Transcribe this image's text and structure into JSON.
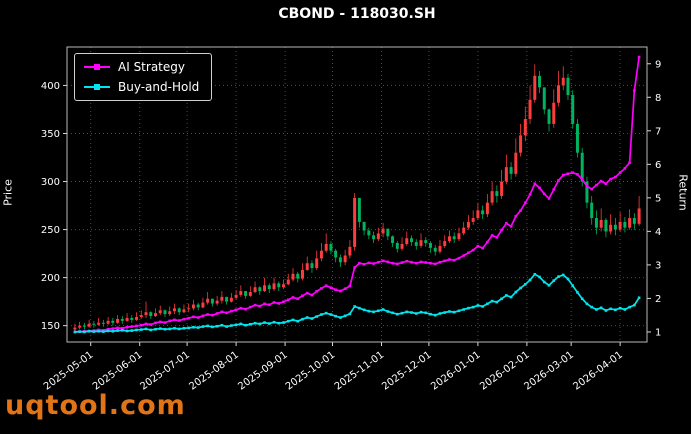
{
  "header": {
    "title": "CBOND - 118030.SH"
  },
  "watermark": {
    "text": "uqtool.com",
    "color": "#ee7b18"
  },
  "chart_data": {
    "type": "candlestick",
    "title": "CBOND - 118030.SH",
    "left_axis": {
      "label": "Price",
      "ticks": [
        150,
        200,
        250,
        300,
        350,
        400
      ],
      "range": [
        133,
        440
      ]
    },
    "right_axis": {
      "label": "Return",
      "ticks": [
        1,
        2,
        3,
        4,
        5,
        6,
        7,
        8,
        9
      ],
      "range": [
        0.7,
        9.5
      ]
    },
    "x_axis": {
      "start_date": "2025-04-21",
      "day_step": 3,
      "range": [
        -5,
        362
      ],
      "tick_days": [
        10,
        41,
        71,
        102,
        133,
        163,
        194,
        224,
        255,
        286,
        314,
        345
      ],
      "tick_labels": [
        "2025-05-01",
        "2025-06-01",
        "2025-07-01",
        "2025-08-01",
        "2025-09-01",
        "2025-10-01",
        "2025-11-01",
        "2025-12-01",
        "2026-01-01",
        "2026-02-01",
        "2026-03-01",
        "2026-04-01"
      ]
    },
    "colors": {
      "up_candle": "#fd3d3d",
      "down_candle": "#00b35f",
      "grid": "#4d4d4d",
      "background": "#000000"
    },
    "candles": {
      "high": [
        152,
        154,
        153,
        156,
        155,
        158,
        156,
        159,
        158,
        161,
        160,
        163,
        161,
        164,
        166,
        175,
        165,
        168,
        171,
        167,
        170,
        173,
        169,
        172,
        173,
        177,
        174,
        179,
        185,
        178,
        181,
        186,
        180,
        184,
        187,
        192,
        186,
        191,
        196,
        191,
        200,
        194,
        200,
        196,
        198,
        204,
        210,
        206,
        215,
        222,
        218,
        228,
        236,
        246,
        238,
        230,
        224,
        229,
        239,
        288,
        272,
        258,
        252,
        248,
        252,
        257,
        250,
        244,
        238,
        242,
        248,
        244,
        240,
        246,
        242,
        238,
        234,
        239,
        244,
        249,
        247,
        252,
        258,
        265,
        270,
        278,
        275,
        287,
        300,
        296,
        312,
        328,
        320,
        345,
        360,
        378,
        400,
        422,
        415,
        392,
        376,
        396,
        415,
        420,
        412,
        395,
        365,
        335,
        305,
        285,
        270,
        272,
        262,
        266,
        262,
        268,
        263,
        271,
        267,
        285
      ],
      "low": [
        144,
        146,
        146,
        148,
        148,
        150,
        149,
        151,
        150,
        152,
        152,
        154,
        153,
        155,
        157,
        158,
        157,
        159,
        161,
        159,
        160,
        162,
        161,
        163,
        164,
        166,
        166,
        168,
        172,
        170,
        171,
        173,
        172,
        174,
        177,
        180,
        178,
        180,
        184,
        182,
        185,
        184,
        186,
        186,
        188,
        192,
        196,
        195,
        197,
        207,
        205,
        208,
        217,
        226,
        224,
        216,
        211,
        213,
        220,
        228,
        252,
        244,
        240,
        236,
        238,
        242,
        239,
        232,
        226,
        228,
        233,
        233,
        229,
        231,
        232,
        226,
        223,
        225,
        231,
        236,
        236,
        238,
        244,
        250,
        255,
        260,
        261,
        263,
        275,
        278,
        282,
        297,
        302,
        305,
        326,
        342,
        360,
        382,
        392,
        370,
        352,
        356,
        378,
        395,
        385,
        355,
        325,
        295,
        272,
        255,
        245,
        248,
        242,
        245,
        244,
        248,
        247,
        250,
        250,
        254
      ],
      "close": [
        148,
        150,
        149,
        152,
        151,
        153,
        152,
        155,
        153,
        157,
        155,
        158,
        156,
        159,
        161,
        164,
        160,
        163,
        166,
        162,
        165,
        168,
        164,
        167,
        168,
        172,
        169,
        174,
        178,
        173,
        176,
        180,
        175,
        179,
        182,
        186,
        181,
        185,
        190,
        186,
        192,
        188,
        194,
        190,
        193,
        198,
        204,
        199,
        208,
        215,
        210,
        220,
        228,
        235,
        228,
        221,
        216,
        223,
        232,
        283,
        258,
        249,
        244,
        240,
        246,
        251,
        243,
        236,
        230,
        235,
        241,
        237,
        233,
        239,
        236,
        231,
        227,
        233,
        238,
        243,
        240,
        246,
        252,
        258,
        262,
        270,
        266,
        278,
        290,
        285,
        300,
        315,
        308,
        330,
        348,
        365,
        385,
        410,
        398,
        375,
        360,
        382,
        400,
        408,
        390,
        360,
        330,
        300,
        278,
        262,
        252,
        260,
        248,
        255,
        250,
        258,
        252,
        262,
        256,
        272
      ]
    },
    "series": [
      {
        "name": "AI Strategy",
        "color": "#ff00ff",
        "axis": "return",
        "values": [
          1.0,
          1.01,
          1.02,
          1.03,
          1.04,
          1.06,
          1.05,
          1.08,
          1.1,
          1.12,
          1.11,
          1.14,
          1.16,
          1.18,
          1.2,
          1.24,
          1.22,
          1.27,
          1.3,
          1.28,
          1.33,
          1.36,
          1.34,
          1.38,
          1.41,
          1.45,
          1.43,
          1.48,
          1.52,
          1.5,
          1.55,
          1.6,
          1.57,
          1.62,
          1.66,
          1.71,
          1.68,
          1.74,
          1.8,
          1.77,
          1.84,
          1.81,
          1.88,
          1.85,
          1.9,
          1.96,
          2.03,
          1.99,
          2.08,
          2.16,
          2.1,
          2.21,
          2.3,
          2.38,
          2.32,
          2.26,
          2.22,
          2.29,
          2.37,
          2.92,
          3.05,
          3.02,
          3.06,
          3.04,
          3.08,
          3.12,
          3.09,
          3.05,
          3.03,
          3.07,
          3.11,
          3.08,
          3.05,
          3.09,
          3.07,
          3.05,
          3.03,
          3.08,
          3.12,
          3.16,
          3.14,
          3.2,
          3.28,
          3.36,
          3.44,
          3.56,
          3.5,
          3.68,
          3.88,
          3.82,
          4.04,
          4.24,
          4.15,
          4.45,
          4.62,
          4.85,
          5.1,
          5.42,
          5.3,
          5.12,
          4.98,
          5.25,
          5.52,
          5.68,
          5.72,
          5.75,
          5.7,
          5.55,
          5.35,
          5.26,
          5.38,
          5.5,
          5.42,
          5.56,
          5.62,
          5.75,
          5.88,
          6.05,
          8.2,
          9.2
        ]
      },
      {
        "name": "Buy-and-Hold",
        "color": "#00e5ee",
        "axis": "return",
        "values": [
          1.0,
          1.01,
          1.0,
          1.02,
          1.01,
          1.02,
          1.01,
          1.03,
          1.02,
          1.04,
          1.05,
          1.03,
          1.04,
          1.06,
          1.07,
          1.09,
          1.06,
          1.08,
          1.1,
          1.08,
          1.09,
          1.11,
          1.09,
          1.11,
          1.12,
          1.14,
          1.13,
          1.16,
          1.18,
          1.15,
          1.17,
          1.2,
          1.16,
          1.19,
          1.21,
          1.24,
          1.2,
          1.23,
          1.26,
          1.24,
          1.28,
          1.25,
          1.29,
          1.26,
          1.28,
          1.32,
          1.36,
          1.32,
          1.38,
          1.43,
          1.4,
          1.46,
          1.52,
          1.56,
          1.52,
          1.47,
          1.43,
          1.48,
          1.54,
          1.76,
          1.71,
          1.66,
          1.62,
          1.6,
          1.63,
          1.67,
          1.61,
          1.57,
          1.53,
          1.56,
          1.6,
          1.58,
          1.55,
          1.59,
          1.57,
          1.53,
          1.5,
          1.55,
          1.58,
          1.61,
          1.59,
          1.63,
          1.67,
          1.71,
          1.74,
          1.79,
          1.76,
          1.84,
          1.92,
          1.89,
          1.99,
          2.09,
          2.04,
          2.19,
          2.31,
          2.42,
          2.55,
          2.72,
          2.64,
          2.49,
          2.39,
          2.53,
          2.65,
          2.7,
          2.58,
          2.38,
          2.18,
          1.99,
          1.84,
          1.74,
          1.67,
          1.72,
          1.64,
          1.69,
          1.66,
          1.71,
          1.67,
          1.74,
          1.8,
          2.02
        ]
      }
    ]
  }
}
